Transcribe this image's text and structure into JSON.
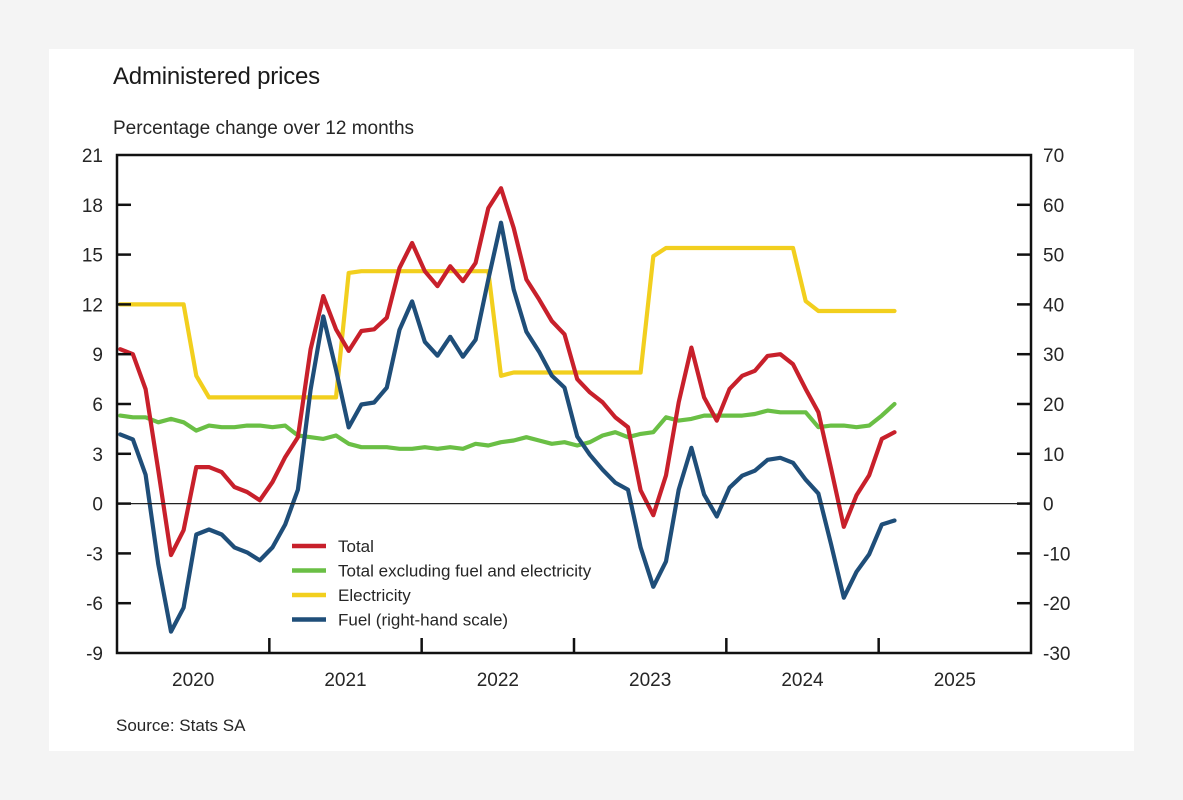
{
  "page": {
    "title": "Administered prices",
    "subtitle": "Percentage change over 12 months",
    "source": "Source: Stats SA"
  },
  "chart_data": {
    "type": "line",
    "title": "Administered prices",
    "subtitle": "Percentage change over 12 months",
    "xlabel": "",
    "ylabel": "Percentage change over 12 months",
    "x_start": "2020-01",
    "x_frequency": "monthly",
    "x_range": [
      "2020-01",
      "2026-01"
    ],
    "x_tick_labels": [
      "2020",
      "2021",
      "2022",
      "2023",
      "2024",
      "2025"
    ],
    "ylim_left": [
      -9,
      21
    ],
    "yticks_left": [
      21,
      18,
      15,
      12,
      9,
      6,
      3,
      0,
      -3,
      -6,
      -9
    ],
    "ylim_right": [
      -30,
      70
    ],
    "yticks_right": [
      70,
      60,
      50,
      40,
      30,
      20,
      10,
      0,
      -10,
      -20,
      -30
    ],
    "grid": false,
    "zero_line": true,
    "legend_position": "bottom-center-left",
    "series": [
      {
        "name": "Total",
        "axis": "left",
        "color": "#c8202b",
        "values": [
          9.3,
          9.0,
          6.9,
          2.0,
          -3.1,
          -1.6,
          2.2,
          2.2,
          1.9,
          1.0,
          0.7,
          0.2,
          1.3,
          2.8,
          4.0,
          9.3,
          12.5,
          10.5,
          9.2,
          10.4,
          10.5,
          11.2,
          14.2,
          15.7,
          14.0,
          13.1,
          14.3,
          13.4,
          14.5,
          17.8,
          19.0,
          16.6,
          13.5,
          12.3,
          11.0,
          10.2,
          7.5,
          6.7,
          6.1,
          5.2,
          4.6,
          0.8,
          -0.7,
          1.7,
          6.1,
          9.4,
          6.4,
          5.0,
          6.9,
          7.7,
          8.0,
          8.9,
          9.0,
          8.4,
          6.9,
          5.5,
          2.1,
          -1.4,
          0.5,
          1.7,
          3.9,
          4.3
        ]
      },
      {
        "name": "Total excluding fuel and electricity",
        "axis": "left",
        "color": "#6abf45",
        "values": [
          5.3,
          5.2,
          5.2,
          4.9,
          5.1,
          4.9,
          4.4,
          4.7,
          4.6,
          4.6,
          4.7,
          4.7,
          4.6,
          4.7,
          4.1,
          4.0,
          3.9,
          4.1,
          3.6,
          3.4,
          3.4,
          3.4,
          3.3,
          3.3,
          3.4,
          3.3,
          3.4,
          3.3,
          3.6,
          3.5,
          3.7,
          3.8,
          4.0,
          3.8,
          3.6,
          3.7,
          3.5,
          3.7,
          4.1,
          4.3,
          4.0,
          4.2,
          4.3,
          5.2,
          5.0,
          5.1,
          5.3,
          5.3,
          5.3,
          5.3,
          5.4,
          5.6,
          5.5,
          5.5,
          5.5,
          4.6,
          4.7,
          4.7,
          4.6,
          4.7,
          5.3,
          6.0
        ]
      },
      {
        "name": "Electricity",
        "axis": "left",
        "color": "#f2cf1e",
        "values": [
          12.0,
          12.0,
          12.0,
          12.0,
          12.0,
          12.0,
          7.7,
          6.4,
          6.4,
          6.4,
          6.4,
          6.4,
          6.4,
          6.4,
          6.4,
          6.4,
          6.4,
          6.4,
          13.9,
          14.0,
          14.0,
          14.0,
          14.0,
          14.0,
          14.0,
          14.0,
          14.0,
          14.0,
          14.0,
          14.0,
          7.7,
          7.9,
          7.9,
          7.9,
          7.9,
          7.9,
          7.9,
          7.9,
          7.9,
          7.9,
          7.9,
          7.9,
          14.9,
          15.4,
          15.4,
          15.4,
          15.4,
          15.4,
          15.4,
          15.4,
          15.4,
          15.4,
          15.4,
          15.4,
          12.2,
          11.6,
          11.6,
          11.6,
          11.6,
          11.6,
          11.6,
          11.6
        ]
      },
      {
        "name": "Fuel (right-hand scale)",
        "axis": "right",
        "color": "#1f4e79",
        "values": [
          13.9,
          12.9,
          5.8,
          -12.2,
          -25.7,
          -20.9,
          -6.2,
          -5.2,
          -6.2,
          -8.8,
          -9.8,
          -11.4,
          -8.8,
          -4.2,
          2.8,
          22.9,
          37.6,
          26.9,
          15.3,
          19.9,
          20.3,
          23.3,
          34.9,
          40.6,
          32.5,
          29.7,
          33.5,
          29.5,
          32.9,
          45.0,
          56.4,
          43.0,
          34.5,
          30.5,
          25.7,
          23.3,
          13.5,
          9.8,
          6.8,
          4.2,
          2.8,
          -8.8,
          -16.7,
          -11.6,
          2.8,
          11.2,
          1.8,
          -2.6,
          3.2,
          5.6,
          6.6,
          8.8,
          9.2,
          8.2,
          4.8,
          2.0,
          -8.2,
          -18.9,
          -13.7,
          -10.2,
          -4.2,
          -3.4
        ]
      }
    ]
  }
}
